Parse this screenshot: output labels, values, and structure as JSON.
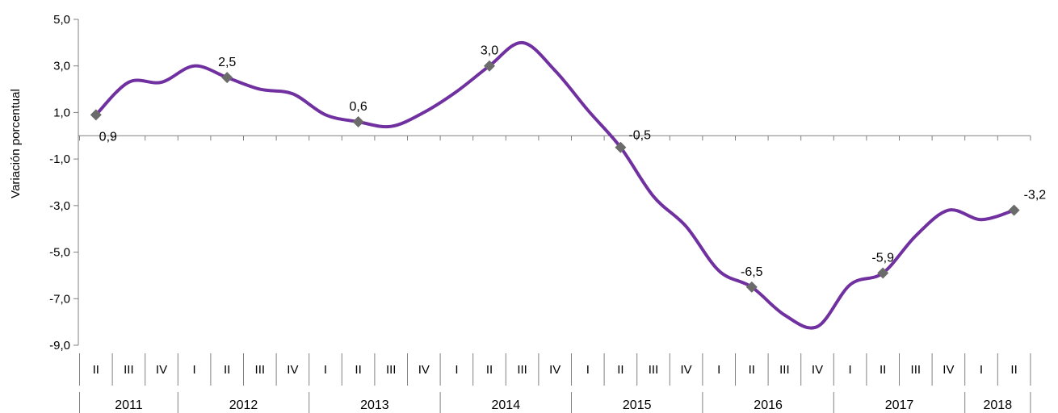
{
  "chart_data": {
    "type": "line",
    "ylabel": "Variación porcentual",
    "xlabel": "",
    "title": "",
    "ylim": [
      -9,
      5
    ],
    "y_ticks": [
      5,
      3,
      1,
      -1,
      -3,
      -5,
      -7,
      -9
    ],
    "y_tick_labels": [
      "5,0",
      "3,0",
      "1,0",
      "-1,0",
      "-3,0",
      "-5,0",
      "-7,0",
      "-9,0"
    ],
    "x": [
      "2011-II",
      "2011-III",
      "2011-IV",
      "2012-I",
      "2012-II",
      "2012-III",
      "2012-IV",
      "2013-I",
      "2013-II",
      "2013-III",
      "2013-IV",
      "2014-I",
      "2014-II",
      "2014-III",
      "2014-IV",
      "2015-I",
      "2015-II",
      "2015-III",
      "2015-IV",
      "2016-I",
      "2016-II",
      "2016-III",
      "2016-IV",
      "2017-I",
      "2017-II",
      "2017-III",
      "2017-IV",
      "2018-I",
      "2018-II"
    ],
    "quarters": [
      "II",
      "III",
      "IV",
      "I",
      "II",
      "III",
      "IV",
      "I",
      "II",
      "III",
      "IV",
      "I",
      "II",
      "III",
      "IV",
      "I",
      "II",
      "III",
      "IV",
      "I",
      "II",
      "III",
      "IV",
      "I",
      "II",
      "III",
      "IV",
      "I",
      "II"
    ],
    "years": [
      {
        "label": "2011",
        "count": 3
      },
      {
        "label": "2012",
        "count": 4
      },
      {
        "label": "2013",
        "count": 4
      },
      {
        "label": "2014",
        "count": 4
      },
      {
        "label": "2015",
        "count": 4
      },
      {
        "label": "2016",
        "count": 4
      },
      {
        "label": "2017",
        "count": 4
      },
      {
        "label": "2018",
        "count": 2
      }
    ],
    "series": [
      {
        "color": "#7030A0",
        "values": [
          0.9,
          2.3,
          2.3,
          3.0,
          2.5,
          2.0,
          1.8,
          0.9,
          0.6,
          0.4,
          1.0,
          1.9,
          3.0,
          4.0,
          2.8,
          1.1,
          -0.5,
          -2.6,
          -3.9,
          -5.8,
          -6.5,
          -7.7,
          -8.2,
          -6.4,
          -5.9,
          -4.3,
          -3.2,
          -3.6,
          -3.2
        ]
      }
    ],
    "labeled_points": [
      {
        "index": 0,
        "text": "0,9",
        "pos": "below"
      },
      {
        "index": 4,
        "text": "2,5",
        "pos": "above"
      },
      {
        "index": 8,
        "text": "0,6",
        "pos": "above"
      },
      {
        "index": 12,
        "text": "3,0",
        "pos": "above"
      },
      {
        "index": 16,
        "text": "-0,5",
        "pos": "right"
      },
      {
        "index": 20,
        "text": "-6,5",
        "pos": "above"
      },
      {
        "index": 24,
        "text": "-5,9",
        "pos": "above"
      },
      {
        "index": 28,
        "text": "-3,2",
        "pos": "above-right"
      }
    ],
    "marker_color": "#6B6B6B",
    "axis_color": "#808080",
    "grid": false
  }
}
